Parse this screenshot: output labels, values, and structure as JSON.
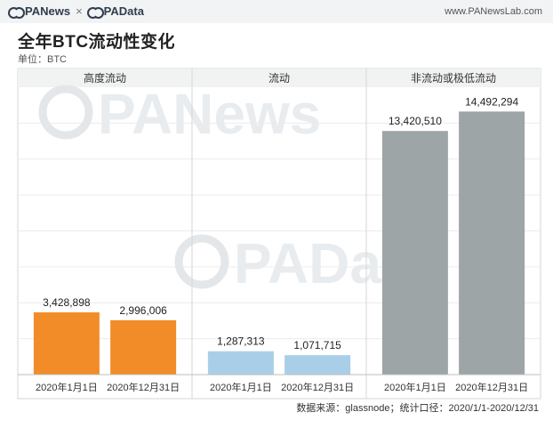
{
  "header": {
    "brand_pan": "PANews",
    "brand_sep": "×",
    "brand_pad": "PAData",
    "site": "www.PANewsLab.com"
  },
  "title": "全年BTC流动性变化",
  "unit": "单位：BTC",
  "source": "数据来源：glassnode；统计口径：2020/1/1-2020/12/31",
  "watermarks": [
    "PANews",
    "PAData"
  ],
  "colors": {
    "highly_liquid": "#f28c28",
    "liquid": "#a9cfe8",
    "illiquid": "#9ea5a6"
  },
  "chart_data": {
    "type": "bar",
    "title": "全年BTC流动性变化",
    "ylabel": "单位：BTC",
    "ylim": [
      0,
      15000000
    ],
    "grid": true,
    "groups": [
      {
        "name": "高度流动",
        "color_key": "highly_liquid",
        "categories": [
          "2020年1月1日",
          "2020年12月31日"
        ],
        "values": [
          3428898,
          2996006
        ],
        "labels": [
          "3,428,898",
          "2,996,006"
        ]
      },
      {
        "name": "流动",
        "color_key": "liquid",
        "categories": [
          "2020年1月1日",
          "2020年12月31日"
        ],
        "values": [
          1287313,
          1071715
        ],
        "labels": [
          "1,287,313",
          "1,071,715"
        ]
      },
      {
        "name": "非流动或极低流动",
        "color_key": "illiquid",
        "categories": [
          "2020年1月1日",
          "2020年12月31日"
        ],
        "values": [
          13420510,
          14492294
        ],
        "labels": [
          "13,420,510",
          "14,492,294"
        ]
      }
    ]
  }
}
